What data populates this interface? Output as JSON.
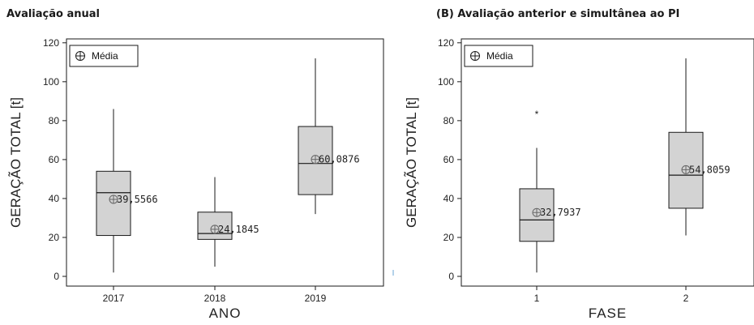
{
  "panels": {
    "a": {
      "title": "Avaliação anual"
    },
    "b": {
      "title": "(B) Avaliação anterior e simultânea ao PI"
    }
  },
  "legend_label": "Média",
  "chart_data": [
    {
      "type": "boxplot",
      "title": "Avaliação anual",
      "xlabel": "ANO",
      "ylabel": "GERAÇÃO TOTAL [t]",
      "ylim": [
        -5,
        122
      ],
      "yticks": [
        0,
        20,
        40,
        60,
        80,
        100,
        120
      ],
      "categories": [
        "2017",
        "2018",
        "2019"
      ],
      "boxes": [
        {
          "category": "2017",
          "whisker_low": 2,
          "q1": 21,
          "median": 43,
          "q3": 54,
          "whisker_high": 86,
          "mean": 39.5566,
          "mean_label": "39,5566",
          "outliers": []
        },
        {
          "category": "2018",
          "whisker_low": 5,
          "q1": 19,
          "median": 22,
          "q3": 33,
          "whisker_high": 51,
          "mean": 24.1845,
          "mean_label": "24,1845",
          "outliers": []
        },
        {
          "category": "2019",
          "whisker_low": 32,
          "q1": 42,
          "median": 58,
          "q3": 77,
          "whisker_high": 112,
          "mean": 60.0876,
          "mean_label": "60,0876",
          "outliers": []
        }
      ],
      "legend": {
        "position": "top-left",
        "entries": [
          "Média"
        ]
      },
      "grid": false
    },
    {
      "type": "boxplot",
      "title": "(B) Avaliação anterior e simultânea ao PI",
      "xlabel": "FASE",
      "ylabel": "GERAÇÃO TOTAL [t]",
      "ylim": [
        -5,
        122
      ],
      "yticks": [
        0,
        20,
        40,
        60,
        80,
        100,
        120
      ],
      "categories": [
        "1",
        "2"
      ],
      "boxes": [
        {
          "category": "1",
          "whisker_low": 2,
          "q1": 18,
          "median": 29,
          "q3": 45,
          "whisker_high": 66,
          "mean": 32.7937,
          "mean_label": "32,7937",
          "outliers": [
            85
          ]
        },
        {
          "category": "2",
          "whisker_low": 21,
          "q1": 35,
          "median": 52,
          "q3": 74,
          "whisker_high": 112,
          "mean": 54.8059,
          "mean_label": "54,8059",
          "outliers": []
        }
      ],
      "legend": {
        "position": "top-left",
        "entries": [
          "Média"
        ]
      },
      "grid": false
    }
  ],
  "colors": {
    "box_fill": "#d3d3d3",
    "line": "#1a1a1a",
    "mean_marker": "#666666"
  }
}
